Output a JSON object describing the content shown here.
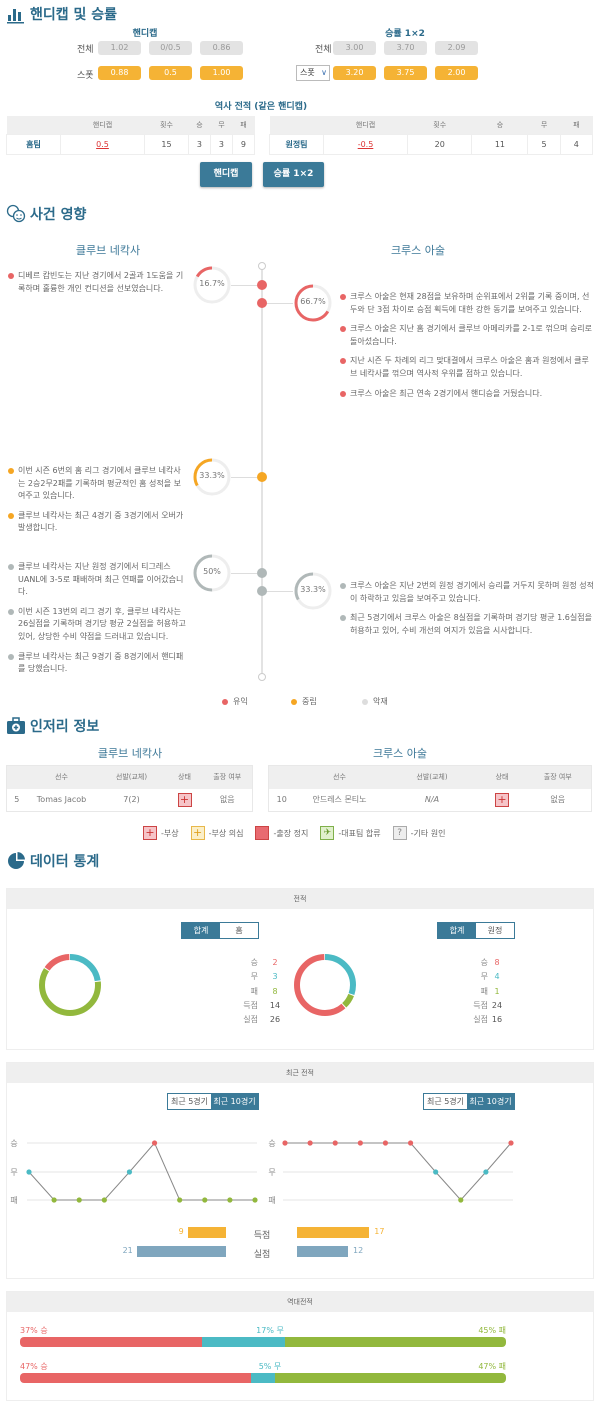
{
  "colors": {
    "accent": "#2b6a8a",
    "button": "#3b7a98",
    "orange": "#f5b335",
    "win": "#e86565",
    "draw": "#4bbac4",
    "loss": "#92b83d",
    "neutral_gray": "#b0b8b8"
  },
  "odds": {
    "title": "핸디캡 및 승률",
    "handicap": {
      "label": "핸디캡",
      "rows": [
        {
          "label": "전체",
          "values": [
            "1.02",
            "0/0.5",
            "0.86"
          ]
        },
        {
          "label": "스폿",
          "values": [
            "0.88",
            "0.5",
            "1.00"
          ]
        }
      ]
    },
    "winrate": {
      "label": "승률 1×2",
      "rows": [
        {
          "label": "전체",
          "values": [
            "3.00",
            "3.70",
            "2.09"
          ]
        },
        {
          "select": "스폿",
          "values": [
            "3.20",
            "3.75",
            "2.00"
          ]
        }
      ]
    },
    "history": {
      "title": "역사 전적 (같은 핸디캡)",
      "headers": [
        "",
        "핸디캡",
        "횟수",
        "승",
        "무",
        "패"
      ],
      "home": {
        "team": "홈팀",
        "handicap": "0.5",
        "count": "15",
        "win": "3",
        "draw": "3",
        "loss": "9"
      },
      "away": {
        "team": "원정팀",
        "handicap": "-0.5",
        "count": "20",
        "win": "11",
        "draw": "5",
        "loss": "4"
      }
    },
    "buttons": [
      "핸디캡",
      "승률 1×2"
    ]
  },
  "impact": {
    "title": "사건 영향",
    "home_team": "클루브 네칵사",
    "away_team": "크루스 아술",
    "groups": [
      {
        "side": "home",
        "level": "benefit",
        "ring": "16.7%",
        "pct": 16.7,
        "items": [
          "디베르 캄빈도는 지난 경기에서 2골과 1도움을 기록하며 훌륭한 개인 컨디션을 선보였습니다."
        ]
      },
      {
        "side": "away",
        "level": "benefit",
        "ring": "66.7%",
        "pct": 66.7,
        "items": [
          "크루스 아술은 현재 28점을 보유하며 순위표에서 2위를 기록 중이며, 선두와 단 3점 차이로 승점 획득에 대한 강한 동기를 보여주고 있습니다.",
          "크루스 아술은 지난 홈 경기에서 클루브 아메리카를 2-1로 꺾으며 승리로 돌아섰습니다.",
          "지난 시즌 두 차례의 리그 맞대결에서 크루스 아술은 홈과 원정에서 클루브 네칵사를 꺾으며 역사적 우위를 점하고 있습니다.",
          "크루스 아술은 최근 연속 2경기에서 핸디승을 거뒀습니다."
        ]
      },
      {
        "side": "home",
        "level": "neutral",
        "ring": "33.3%",
        "pct": 33.3,
        "items": [
          "이번 시즌 6번의 홈 리그 경기에서 클루브 네칵사는 2승2무2패를 기록하며 평균적인 홈 성적을 보여주고 있습니다.",
          "클루브 네칵사는 최근 4경기 중 3경기에서 오버가 발생합니다."
        ]
      },
      {
        "side": "home",
        "level": "harm",
        "ring": "50%",
        "pct": 50,
        "items": [
          "클루브 네칵사는 지난 원정 경기에서 티그레스 UANL에 3-5로 패배하며 최근 연패를 이어갔습니다.",
          "이번 시즌 13번의 리그 경기 후, 클루브 네칵사는 26실점을 기록하며 경기당 평균 2실점을 허용하고 있어, 상당한 수비 약점을 드러내고 있습니다.",
          "클루브 네칵사는 최근 9경기 중 8경기에서 핸디패를 당했습니다."
        ]
      },
      {
        "side": "away",
        "level": "harm",
        "ring": "33.3%",
        "pct": 33.3,
        "items": [
          "크루스 아술은 지난 2번의 원정 경기에서 승리를 거두지 못하며 원정 성적이 하락하고 있음을 보여주고 있습니다.",
          "최근 5경기에서 크루스 아술은 8실점을 기록하며 경기당 평균 1.6실점을 허용하고 있어, 수비 개선의 여지가 있음을 시사합니다."
        ]
      }
    ],
    "legend": [
      "유익",
      "중립",
      "악재"
    ]
  },
  "injury": {
    "title": "인저리 정보",
    "home_team": "클루브 네칵사",
    "away_team": "크루스 아술",
    "headers": [
      "선수",
      "선발(교체)",
      "상태",
      "출장 여부"
    ],
    "home": {
      "number": "5",
      "player": "Tomas Jacob",
      "apps": "7(2)",
      "status": "injury",
      "play": "없음"
    },
    "away": {
      "number": "10",
      "player": "안드레스 몬티노",
      "apps": "N/A",
      "status": "injury",
      "play": "없음"
    },
    "legend": [
      "-부상",
      "-부상 의심",
      "-출장 정지",
      "-대표팀 합류",
      "-기타 원인"
    ]
  },
  "stats": {
    "title": "데이터 통계",
    "record": {
      "title": "전적",
      "home_toggle": [
        "합계",
        "홈"
      ],
      "away_toggle": [
        "합계",
        "원정"
      ],
      "labels": [
        "승",
        "무",
        "패",
        "득점",
        "실점"
      ],
      "home": [
        "2",
        "3",
        "8",
        "14",
        "26"
      ],
      "away": [
        "8",
        "4",
        "1",
        "24",
        "16"
      ]
    },
    "recent": {
      "title": "최근 전적",
      "toggle": [
        "최근 5경기",
        "최근 10경기"
      ],
      "active": "최근 10경기",
      "levels": [
        "승",
        "무",
        "패"
      ],
      "home_results": [
        "무",
        "패",
        "패",
        "패",
        "무",
        "승",
        "패",
        "패",
        "패",
        "패"
      ],
      "away_results": [
        "승",
        "승",
        "승",
        "승",
        "승",
        "승",
        "무",
        "패",
        "무",
        "승"
      ],
      "goal_labels": [
        "득점",
        "실점"
      ],
      "home_goals": {
        "scored": "9",
        "conceded": "21"
      },
      "away_goals": {
        "scored": "17",
        "conceded": "12"
      }
    },
    "h2h": {
      "title": "역대전적",
      "rows": [
        {
          "win": 37,
          "draw": 17,
          "loss": 45,
          "win_label": "37% 승",
          "draw_label": "17% 무",
          "loss_label": "45% 패"
        },
        {
          "win": 47,
          "draw": 5,
          "loss": 47,
          "win_label": "47% 승",
          "draw_label": "5% 무",
          "loss_label": "47% 패"
        }
      ]
    }
  }
}
